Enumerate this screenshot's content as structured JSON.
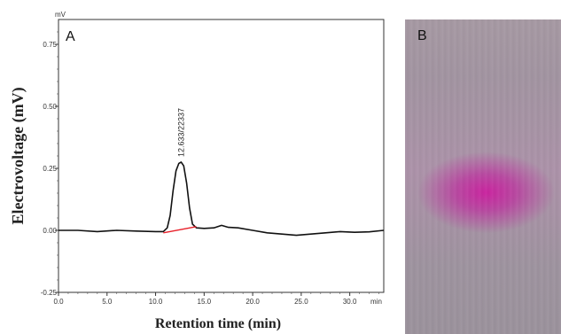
{
  "panels": {
    "a_label": "A",
    "b_label": "B"
  },
  "chart_data": {
    "type": "line",
    "xlabel": "Retention time (min)",
    "ylabel": "Electrovoltage (mV)",
    "x_unit": "min",
    "y_unit": "mV",
    "xlim": [
      0,
      33.5
    ],
    "ylim": [
      -0.25,
      0.85
    ],
    "x_ticks": [
      0.0,
      5.0,
      10.0,
      15.0,
      20.0,
      25.0,
      30.0
    ],
    "x_tick_labels": [
      "0.0",
      "5.0",
      "10.0",
      "15.0",
      "20.0",
      "25.0",
      "30.0"
    ],
    "y_ticks": [
      -0.25,
      0.0,
      0.25,
      0.5,
      0.75
    ],
    "y_tick_labels": [
      "-0.25",
      "0.00",
      "0.25",
      "0.50",
      "0.75"
    ],
    "grid": false,
    "series": [
      {
        "color": "#111111",
        "x": [
          0,
          2,
          4,
          6,
          8,
          10,
          10.8,
          11.2,
          11.5,
          11.8,
          12.1,
          12.4,
          12.633,
          12.9,
          13.2,
          13.5,
          13.8,
          14.2,
          15,
          16,
          16.8,
          17.5,
          18.5,
          20,
          21.5,
          23,
          24.5,
          26,
          27.5,
          29,
          30.5,
          32,
          33.5
        ],
        "y": [
          0.0,
          0.0,
          -0.005,
          0.0,
          -0.003,
          -0.005,
          -0.005,
          0.01,
          0.06,
          0.16,
          0.24,
          0.27,
          0.275,
          0.26,
          0.19,
          0.09,
          0.025,
          0.01,
          0.008,
          0.01,
          0.02,
          0.012,
          0.01,
          0.0,
          -0.01,
          -0.015,
          -0.02,
          -0.015,
          -0.01,
          -0.005,
          -0.008,
          -0.006,
          0.0
        ]
      },
      {
        "color": "#e8202a",
        "x": [
          10.8,
          14.2
        ],
        "y": [
          -0.01,
          0.015
        ]
      }
    ],
    "annotations": [
      {
        "text": "12.633/22337",
        "x": 12.633,
        "y": 0.275
      }
    ]
  }
}
